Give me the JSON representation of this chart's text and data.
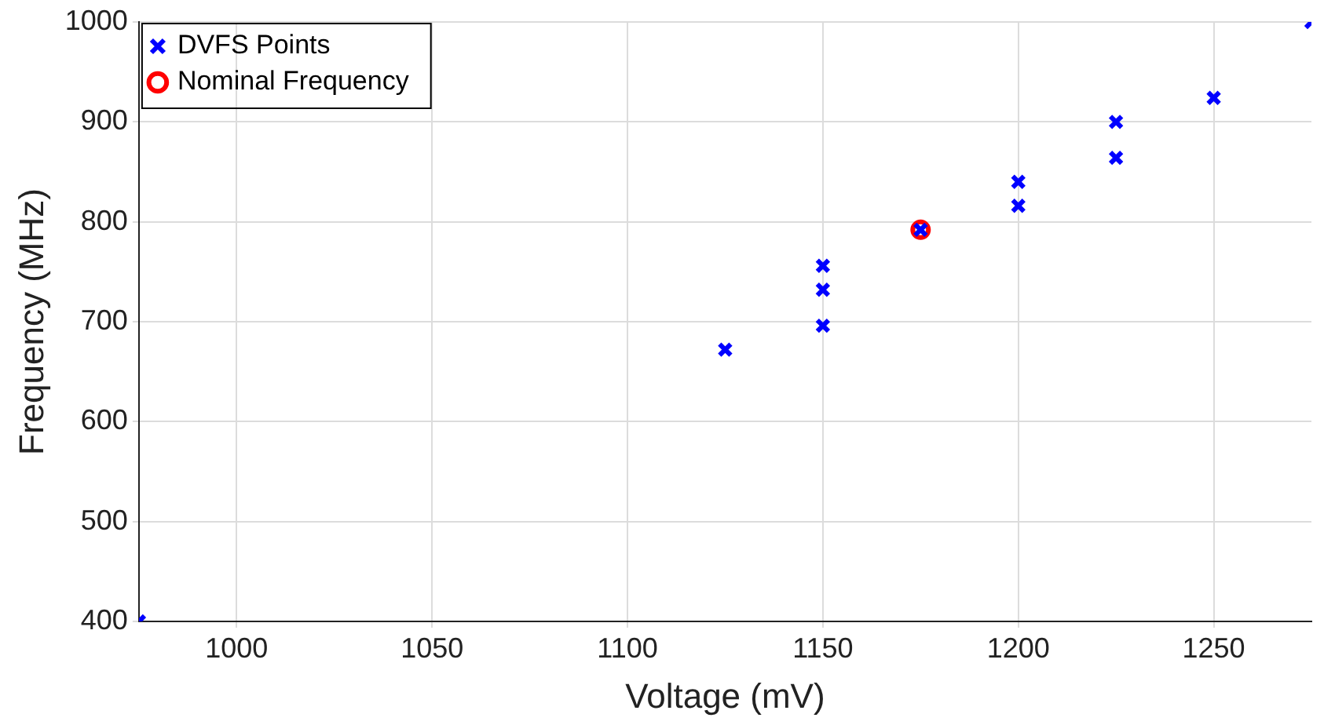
{
  "chart_data": {
    "type": "scatter",
    "xlabel": "Voltage (mV)",
    "ylabel": "Frequency (MHz)",
    "xlim": [
      975,
      1275
    ],
    "xticks": [
      1000,
      1050,
      1100,
      1150,
      1200,
      1250
    ],
    "ylim": [
      400,
      1000
    ],
    "yticks": [
      400,
      500,
      600,
      700,
      800,
      900,
      1000
    ],
    "grid": true,
    "legend": "top left",
    "series": [
      {
        "name": "DVFS Points",
        "color": "#0000ff",
        "marker": "cross",
        "x": [
          975,
          1125,
          1150,
          1150,
          1150,
          1175,
          1200,
          1200,
          1225,
          1225,
          1250,
          1275
        ],
        "values": [
          400,
          672,
          696,
          732,
          756,
          792,
          816,
          840,
          864,
          900,
          924,
          1000
        ]
      },
      {
        "name": "Nominal Frequency",
        "color": "#ff0000",
        "marker": "circle",
        "x": [
          1175
        ],
        "values": [
          792
        ]
      }
    ]
  }
}
